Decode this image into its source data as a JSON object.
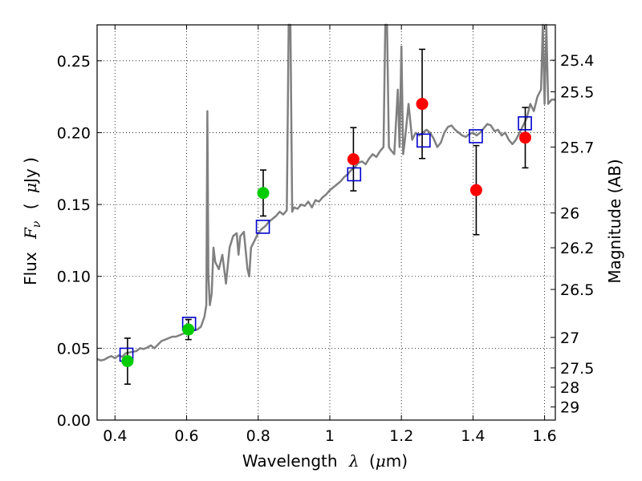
{
  "chart_data": {
    "type": "scatter",
    "xlabel": {
      "prefix": "Wavelength",
      "symbol": "λ",
      "unit_open": "(",
      "unit_mu": "μ",
      "unit_rest": "m)"
    },
    "ylabel": {
      "prefix": "Flux",
      "symbol": "F",
      "subscript": "ν",
      "unit_open": "(",
      "unit_mu": "μ",
      "unit_rest": "Jy )"
    },
    "y2label": "Magnitude (AB)",
    "xlim": [
      0.35,
      1.63
    ],
    "ylim": [
      0.0,
      0.275
    ],
    "x_ticks": [
      0.4,
      0.6,
      0.8,
      1.0,
      1.2,
      1.4,
      1.6
    ],
    "x_tick_labels": [
      "0.4",
      "0.6",
      "0.8",
      "1",
      "1.2",
      "1.4",
      "1.6"
    ],
    "y_ticks": [
      0.0,
      0.05,
      0.1,
      0.15,
      0.2,
      0.25
    ],
    "y_tick_labels": [
      "0.00",
      "0.05",
      "0.10",
      "0.15",
      "0.20",
      "0.25"
    ],
    "mag_ticks": [
      {
        "label": "25.4",
        "flux": 0.2504
      },
      {
        "label": "25.5",
        "flux": 0.2284
      },
      {
        "label": "25.7",
        "flux": 0.19
      },
      {
        "label": "26",
        "flux": 0.1441
      },
      {
        "label": "26.2",
        "flux": 0.1199
      },
      {
        "label": "26.5",
        "flux": 0.0909
      },
      {
        "label": "27",
        "flux": 0.0575
      },
      {
        "label": "27.5",
        "flux": 0.0363
      },
      {
        "label": "28",
        "flux": 0.0229
      },
      {
        "label": "29",
        "flux": 0.0091
      }
    ],
    "grid": true,
    "colors": {
      "model": "#808080",
      "green": "#00cc00",
      "red": "#ff0000",
      "synthetic": "#0000cc",
      "errorbar": "#000000"
    },
    "model_spectrum": [
      [
        0.35,
        0.0425
      ],
      [
        0.36,
        0.0415
      ],
      [
        0.37,
        0.042
      ],
      [
        0.38,
        0.0435
      ],
      [
        0.39,
        0.0445
      ],
      [
        0.4,
        0.043
      ],
      [
        0.41,
        0.045
      ],
      [
        0.42,
        0.044
      ],
      [
        0.43,
        0.0465
      ],
      [
        0.44,
        0.047
      ],
      [
        0.45,
        0.0475
      ],
      [
        0.46,
        0.048
      ],
      [
        0.47,
        0.05
      ],
      [
        0.48,
        0.0495
      ],
      [
        0.49,
        0.0505
      ],
      [
        0.5,
        0.052
      ],
      [
        0.51,
        0.05
      ],
      [
        0.52,
        0.0525
      ],
      [
        0.53,
        0.055
      ],
      [
        0.54,
        0.056
      ],
      [
        0.55,
        0.057
      ],
      [
        0.56,
        0.058
      ],
      [
        0.57,
        0.058
      ],
      [
        0.58,
        0.059
      ],
      [
        0.59,
        0.06
      ],
      [
        0.6,
        0.061
      ],
      [
        0.61,
        0.062
      ],
      [
        0.62,
        0.0625
      ],
      [
        0.63,
        0.063
      ],
      [
        0.64,
        0.065
      ],
      [
        0.65,
        0.072
      ],
      [
        0.655,
        0.08
      ],
      [
        0.658,
        0.215
      ],
      [
        0.661,
        0.1
      ],
      [
        0.665,
        0.08
      ],
      [
        0.67,
        0.088
      ],
      [
        0.675,
        0.12
      ],
      [
        0.68,
        0.11
      ],
      [
        0.69,
        0.105
      ],
      [
        0.7,
        0.115
      ],
      [
        0.71,
        0.095
      ],
      [
        0.72,
        0.12
      ],
      [
        0.73,
        0.128
      ],
      [
        0.74,
        0.13
      ],
      [
        0.745,
        0.115
      ],
      [
        0.75,
        0.128
      ],
      [
        0.76,
        0.131
      ],
      [
        0.77,
        0.105
      ],
      [
        0.775,
        0.1
      ],
      [
        0.78,
        0.12
      ],
      [
        0.79,
        0.125
      ],
      [
        0.8,
        0.13
      ],
      [
        0.81,
        0.133
      ],
      [
        0.82,
        0.135
      ],
      [
        0.83,
        0.138
      ],
      [
        0.84,
        0.14
      ],
      [
        0.85,
        0.142
      ],
      [
        0.86,
        0.145
      ],
      [
        0.87,
        0.143
      ],
      [
        0.88,
        0.146
      ],
      [
        0.885,
        0.28
      ],
      [
        0.89,
        0.28
      ],
      [
        0.895,
        0.145
      ],
      [
        0.9,
        0.148
      ],
      [
        0.91,
        0.147
      ],
      [
        0.92,
        0.15
      ],
      [
        0.93,
        0.149
      ],
      [
        0.94,
        0.152
      ],
      [
        0.95,
        0.148
      ],
      [
        0.96,
        0.153
      ],
      [
        0.97,
        0.152
      ],
      [
        0.98,
        0.155
      ],
      [
        0.99,
        0.157
      ],
      [
        1.0,
        0.16
      ],
      [
        1.01,
        0.162
      ],
      [
        1.02,
        0.164
      ],
      [
        1.03,
        0.166
      ],
      [
        1.04,
        0.169
      ],
      [
        1.05,
        0.171
      ],
      [
        1.06,
        0.174
      ],
      [
        1.07,
        0.176
      ],
      [
        1.08,
        0.179
      ],
      [
        1.09,
        0.18
      ],
      [
        1.1,
        0.178
      ],
      [
        1.11,
        0.182
      ],
      [
        1.12,
        0.185
      ],
      [
        1.13,
        0.183
      ],
      [
        1.14,
        0.187
      ],
      [
        1.15,
        0.19
      ],
      [
        1.155,
        0.28
      ],
      [
        1.16,
        0.28
      ],
      [
        1.165,
        0.19
      ],
      [
        1.17,
        0.188
      ],
      [
        1.18,
        0.185
      ],
      [
        1.19,
        0.23
      ],
      [
        1.195,
        0.19
      ],
      [
        1.2,
        0.26
      ],
      [
        1.205,
        0.185
      ],
      [
        1.21,
        0.195
      ],
      [
        1.22,
        0.22
      ],
      [
        1.23,
        0.195
      ],
      [
        1.24,
        0.2
      ],
      [
        1.25,
        0.198
      ],
      [
        1.26,
        0.2
      ],
      [
        1.27,
        0.202
      ],
      [
        1.28,
        0.2
      ],
      [
        1.29,
        0.196
      ],
      [
        1.3,
        0.19
      ],
      [
        1.31,
        0.193
      ],
      [
        1.32,
        0.2
      ],
      [
        1.33,
        0.204
      ],
      [
        1.34,
        0.205
      ],
      [
        1.35,
        0.202
      ],
      [
        1.36,
        0.2
      ],
      [
        1.37,
        0.198
      ],
      [
        1.38,
        0.197
      ],
      [
        1.39,
        0.199
      ],
      [
        1.4,
        0.2
      ],
      [
        1.41,
        0.198
      ],
      [
        1.42,
        0.2
      ],
      [
        1.43,
        0.203
      ],
      [
        1.44,
        0.206
      ],
      [
        1.45,
        0.205
      ],
      [
        1.46,
        0.201
      ],
      [
        1.47,
        0.202
      ],
      [
        1.48,
        0.198
      ],
      [
        1.49,
        0.2
      ],
      [
        1.5,
        0.195
      ],
      [
        1.51,
        0.192
      ],
      [
        1.52,
        0.195
      ],
      [
        1.53,
        0.2
      ],
      [
        1.54,
        0.205
      ],
      [
        1.55,
        0.21
      ],
      [
        1.56,
        0.22
      ],
      [
        1.57,
        0.215
      ],
      [
        1.58,
        0.225
      ],
      [
        1.59,
        0.23
      ],
      [
        1.595,
        0.28
      ],
      [
        1.6,
        0.22
      ],
      [
        1.605,
        0.28
      ],
      [
        1.61,
        0.22
      ],
      [
        1.62,
        0.223
      ],
      [
        1.63,
        0.223
      ]
    ],
    "synthetic_points": [
      {
        "x": 0.432,
        "y": 0.0455
      },
      {
        "x": 0.607,
        "y": 0.067
      },
      {
        "x": 0.813,
        "y": 0.1345
      },
      {
        "x": 1.068,
        "y": 0.171
      },
      {
        "x": 1.262,
        "y": 0.1945
      },
      {
        "x": 1.408,
        "y": 0.1975
      },
      {
        "x": 1.545,
        "y": 0.2065
      }
    ],
    "observed_points": [
      {
        "x": 0.435,
        "y": 0.041,
        "err": 0.016,
        "color": "green"
      },
      {
        "x": 0.605,
        "y": 0.063,
        "err": 0.007,
        "color": "green"
      },
      {
        "x": 0.814,
        "y": 0.158,
        "err": 0.016,
        "color": "green"
      },
      {
        "x": 1.066,
        "y": 0.1815,
        "err": 0.022,
        "color": "red"
      },
      {
        "x": 1.258,
        "y": 0.22,
        "err": 0.038,
        "color": "red"
      },
      {
        "x": 1.409,
        "y": 0.16,
        "err": 0.031,
        "color": "red"
      },
      {
        "x": 1.546,
        "y": 0.1965,
        "err": 0.021,
        "color": "red"
      }
    ]
  }
}
